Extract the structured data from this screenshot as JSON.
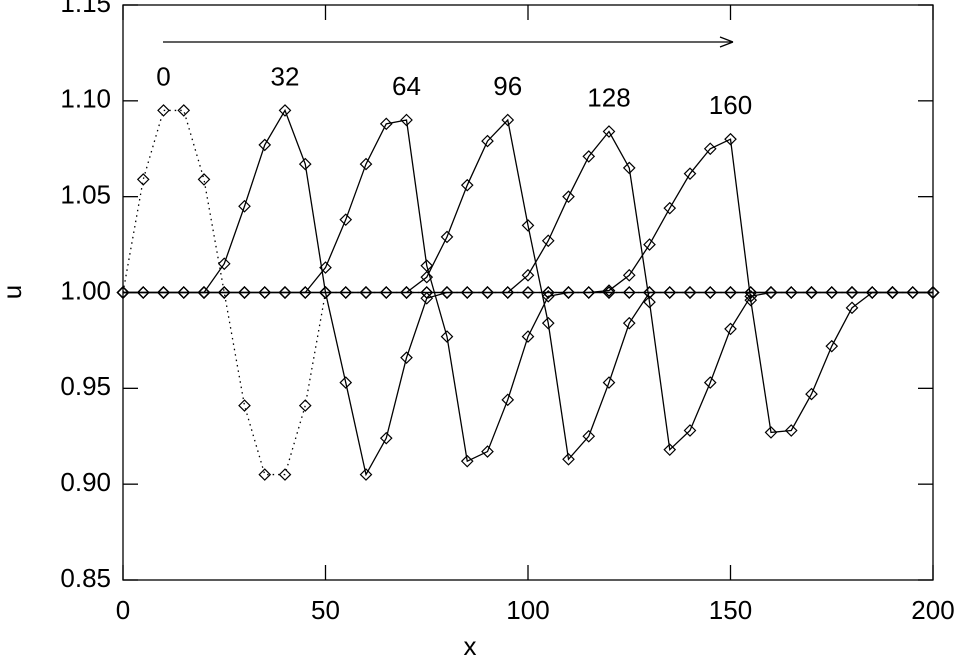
{
  "chart_data": {
    "type": "line",
    "x_label": "x",
    "y_label": "u",
    "x": [
      0,
      5,
      10,
      15,
      20,
      25,
      30,
      35,
      40,
      45,
      50,
      55,
      60,
      65,
      70,
      75,
      80,
      85,
      90,
      95,
      100,
      105,
      110,
      115,
      120,
      125,
      130,
      135,
      140,
      145,
      150,
      155,
      160,
      165,
      170,
      175,
      180,
      185,
      190,
      195,
      200
    ],
    "series": [
      {
        "name": "0",
        "color": "#000000",
        "line_style": "dotted",
        "values": [
          1,
          1.059,
          1.095,
          1.095,
          1.059,
          1,
          0.941,
          0.905,
          0.905,
          0.941,
          1,
          1,
          1,
          1,
          1,
          1,
          1,
          1,
          1,
          1,
          1,
          1,
          1,
          1,
          1,
          1,
          1,
          1,
          1,
          1,
          1,
          1,
          1,
          1,
          1,
          1,
          1,
          1,
          1,
          1,
          1
        ]
      },
      {
        "name": "32",
        "color": "#000000",
        "line_style": "solid",
        "values": [
          1,
          1,
          1,
          1,
          1,
          1.015,
          1.045,
          1.077,
          1.095,
          1.067,
          1,
          0.953,
          0.905,
          0.924,
          0.966,
          0.997,
          1,
          1,
          1,
          1,
          1,
          1,
          1,
          1,
          1,
          1,
          1,
          1,
          1,
          1,
          1,
          1,
          1,
          1,
          1,
          1,
          1,
          1,
          1,
          1,
          1
        ]
      },
      {
        "name": "64",
        "color": "#000000",
        "line_style": "solid",
        "values": [
          1,
          1,
          1,
          1,
          1,
          1,
          1,
          1,
          1,
          1,
          1.013,
          1.038,
          1.067,
          1.088,
          1.09,
          1.014,
          0.977,
          0.912,
          0.917,
          0.944,
          0.977,
          0.998,
          1,
          1,
          1,
          1,
          1,
          1,
          1,
          1,
          1,
          1,
          1,
          1,
          1,
          1,
          1,
          1,
          1,
          1,
          1
        ]
      },
      {
        "name": "96",
        "color": "#000000",
        "line_style": "solid",
        "values": [
          1,
          1,
          1,
          1,
          1,
          1,
          1,
          1,
          1,
          1,
          1,
          1,
          1,
          1,
          1,
          1.008,
          1.029,
          1.056,
          1.079,
          1.09,
          1.035,
          0.984,
          0.913,
          0.925,
          0.953,
          0.984,
          1,
          1,
          1,
          1,
          1,
          1,
          1,
          1,
          1,
          1,
          1,
          1,
          1,
          1,
          1
        ]
      },
      {
        "name": "128",
        "color": "#000000",
        "line_style": "solid",
        "values": [
          1,
          1,
          1,
          1,
          1,
          1,
          1,
          1,
          1,
          1,
          1,
          1,
          1,
          1,
          1,
          1,
          1,
          1,
          1,
          1,
          1.009,
          1.027,
          1.05,
          1.071,
          1.084,
          1.065,
          0.995,
          0.918,
          0.928,
          0.953,
          0.981,
          0.998,
          1,
          1,
          1,
          1,
          1,
          1,
          1,
          1,
          1
        ]
      },
      {
        "name": "160",
        "color": "#000000",
        "line_style": "solid",
        "values": [
          1,
          1,
          1,
          1,
          1,
          1,
          1,
          1,
          1,
          1,
          1,
          1,
          1,
          1,
          1,
          1,
          1,
          1,
          1,
          1,
          1,
          1,
          1,
          1,
          1.001,
          1.009,
          1.025,
          1.044,
          1.062,
          1.075,
          1.08,
          0.996,
          0.927,
          0.928,
          0.947,
          0.972,
          0.992,
          1,
          1,
          1,
          1
        ]
      }
    ],
    "xlim": [
      0,
      200
    ],
    "xticks": [
      0,
      50,
      100,
      150,
      200
    ],
    "ylim": [
      0.85,
      1.15
    ],
    "yticks": [
      0.85,
      {
        "value": 0.9,
        "label": "0.90"
      },
      0.95,
      {
        "value": 1.0,
        "label": "1.00"
      },
      1.05,
      {
        "value": 1.1,
        "label": "1.10"
      },
      1.15
    ],
    "grid": false,
    "legend": false
  }
}
